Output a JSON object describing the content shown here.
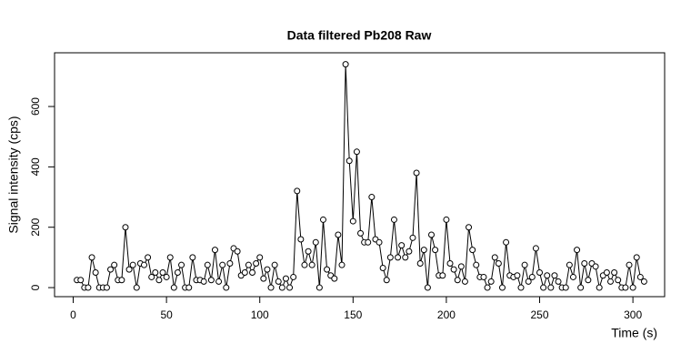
{
  "chart_data": {
    "type": "line",
    "title": "Data filtered Pb208 Raw",
    "x_label": "Time (s)",
    "y_label": "Signal intensity (cps)",
    "x": [
      2,
      4,
      6,
      8,
      10,
      12,
      14,
      16,
      18,
      20,
      22,
      24,
      26,
      28,
      30,
      32,
      34,
      36,
      38,
      40,
      42,
      44,
      46,
      48,
      50,
      52,
      54,
      56,
      58,
      60,
      62,
      64,
      66,
      68,
      70,
      72,
      74,
      76,
      78,
      80,
      82,
      84,
      86,
      88,
      90,
      92,
      94,
      96,
      98,
      100,
      102,
      104,
      106,
      108,
      110,
      112,
      114,
      116,
      118,
      120,
      122,
      124,
      126,
      128,
      130,
      132,
      134,
      136,
      138,
      140,
      142,
      144,
      146,
      148,
      150,
      152,
      154,
      156,
      158,
      160,
      162,
      164,
      166,
      168,
      170,
      172,
      174,
      176,
      178,
      180,
      182,
      184,
      186,
      188,
      190,
      192,
      194,
      196,
      198,
      200,
      202,
      204,
      206,
      208,
      210,
      212,
      214,
      216,
      218,
      220,
      222,
      224,
      226,
      228,
      230,
      232,
      234,
      236,
      238,
      240,
      242,
      244,
      246,
      248,
      250,
      252,
      254,
      256,
      258,
      260,
      262,
      264,
      266,
      268,
      270,
      272,
      274,
      276,
      278,
      280,
      282,
      284,
      286,
      288,
      290,
      292,
      294,
      296,
      298,
      300,
      302,
      304,
      306
    ],
    "values": [
      25,
      25,
      0,
      0,
      100,
      50,
      0,
      0,
      0,
      60,
      75,
      25,
      25,
      200,
      60,
      75,
      0,
      80,
      75,
      100,
      35,
      50,
      25,
      50,
      35,
      100,
      0,
      50,
      75,
      0,
      0,
      100,
      25,
      25,
      20,
      75,
      25,
      125,
      20,
      75,
      0,
      80,
      130,
      120,
      40,
      50,
      75,
      50,
      80,
      100,
      30,
      60,
      0,
      75,
      20,
      0,
      30,
      0,
      35,
      320,
      160,
      75,
      120,
      75,
      150,
      0,
      225,
      60,
      40,
      30,
      175,
      75,
      740,
      420,
      220,
      450,
      180,
      150,
      150,
      300,
      160,
      150,
      65,
      25,
      100,
      225,
      100,
      140,
      100,
      120,
      165,
      380,
      80,
      125,
      0,
      175,
      125,
      40,
      40,
      225,
      80,
      60,
      25,
      70,
      20,
      200,
      125,
      75,
      35,
      35,
      0,
      20,
      100,
      80,
      0,
      150,
      40,
      35,
      40,
      0,
      75,
      20,
      35,
      130,
      50,
      0,
      40,
      0,
      40,
      20,
      0,
      0,
      75,
      35,
      125,
      0,
      80,
      25,
      80,
      70,
      0,
      40,
      50,
      20,
      50,
      25,
      0,
      0,
      75,
      0,
      100,
      35,
      20
    ],
    "color": "#000000",
    "xlim": [
      -10,
      317
    ],
    "ylim": [
      -30,
      778
    ],
    "xticks": [
      0,
      50,
      100,
      150,
      200,
      250,
      300
    ],
    "yticks": [
      0,
      200,
      400,
      600
    ]
  }
}
